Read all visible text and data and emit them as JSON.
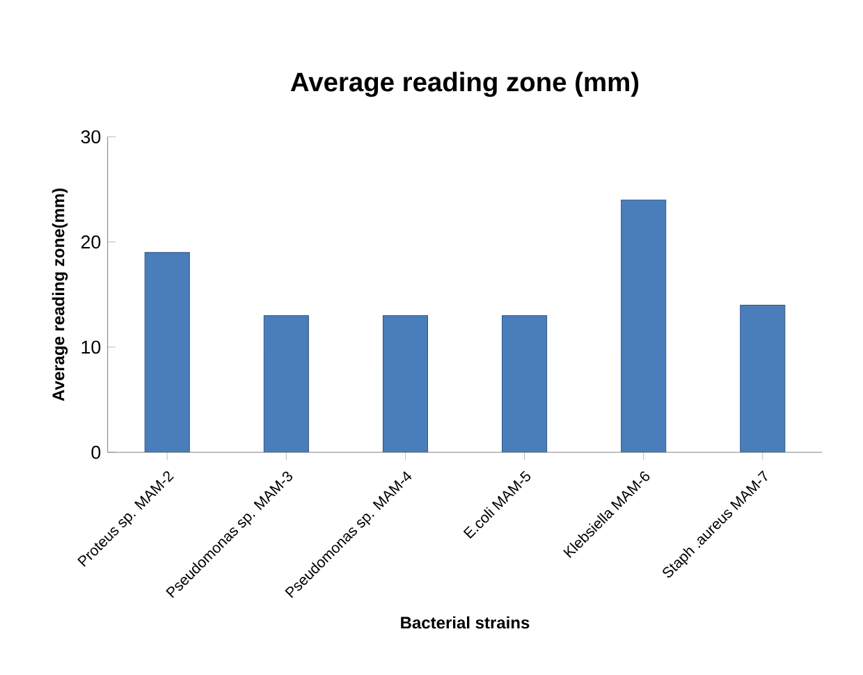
{
  "chart_data": {
    "type": "bar",
    "title": "Average reading zone (mm)",
    "xlabel": "Bacterial strains",
    "ylabel": "Average reading zone(mm)",
    "categories": [
      "Proteus sp. MAM-2",
      "Pseudomonas sp. MAM-3",
      "Pseudomonas sp. MAM-4",
      "E.coli MAM-5",
      "Klebsiella MAM-6",
      "Staph .aureus MAM-7"
    ],
    "values": [
      19,
      13,
      13,
      13,
      24,
      14
    ],
    "color": "#4a7ebb",
    "ylim": [
      0,
      30
    ],
    "yticks": [
      0,
      10,
      20,
      30
    ],
    "grid": false
  }
}
